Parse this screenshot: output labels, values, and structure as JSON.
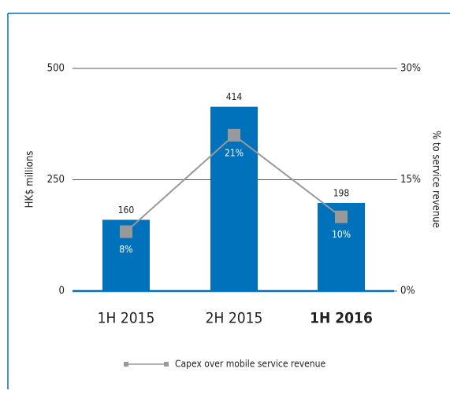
{
  "chart_data": {
    "type": "bar",
    "categories": [
      "1H 2015",
      "2H 2015",
      "1H 2016"
    ],
    "bold_categories": [
      false,
      false,
      true
    ],
    "series": [
      {
        "name": "HK$ millions",
        "color": "#0072bc",
        "values": [
          160,
          414,
          198
        ]
      },
      {
        "name": "Capex over mobile service revenue",
        "type": "line",
        "axis": "y2",
        "color": "#999999",
        "values": [
          8,
          21,
          10
        ],
        "value_labels": [
          "8%",
          "21%",
          "10%"
        ]
      }
    ],
    "ylabel": "HK$ millions",
    "y2label": "% to service revenue",
    "ylim": [
      0,
      500
    ],
    "yticks": [
      0,
      250,
      500
    ],
    "y2lim": [
      0,
      30
    ],
    "y2ticks": [
      {
        "value": 0,
        "label": "0%"
      },
      {
        "value": 15,
        "label": "15%"
      },
      {
        "value": 30,
        "label": "30%"
      }
    ],
    "grid": true,
    "legend": "bottom"
  }
}
